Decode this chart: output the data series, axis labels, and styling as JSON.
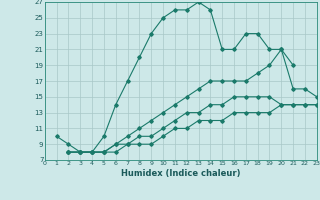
{
  "xlabel": "Humidex (Indice chaleur)",
  "bg_color": "#cde8e8",
  "grid_color": "#a8c8c8",
  "line_color": "#1a7a6a",
  "xlim": [
    0,
    23
  ],
  "ylim": [
    7,
    27
  ],
  "xticks": [
    0,
    1,
    2,
    3,
    4,
    5,
    6,
    7,
    8,
    9,
    10,
    11,
    12,
    13,
    14,
    15,
    16,
    17,
    18,
    19,
    20,
    21,
    22,
    23
  ],
  "yticks": [
    7,
    9,
    11,
    13,
    15,
    17,
    19,
    21,
    23,
    25,
    27
  ],
  "series": [
    {
      "x": [
        1,
        2,
        3,
        4,
        5,
        6,
        7,
        8,
        9,
        10,
        11,
        12,
        13,
        14,
        15,
        16,
        17,
        18,
        19,
        20,
        21
      ],
      "y": [
        10,
        9,
        8,
        8,
        10,
        14,
        17,
        20,
        23,
        25,
        26,
        26,
        27,
        26,
        21,
        21,
        23,
        23,
        21,
        21,
        19
      ]
    },
    {
      "x": [
        2,
        3,
        4,
        5,
        6,
        7,
        8,
        9,
        10,
        11,
        12,
        13,
        14,
        15,
        16,
        17,
        18,
        19,
        20,
        21,
        22,
        23
      ],
      "y": [
        8,
        8,
        8,
        8,
        9,
        10,
        11,
        12,
        13,
        14,
        15,
        16,
        17,
        17,
        17,
        17,
        18,
        19,
        21,
        16,
        16,
        15
      ]
    },
    {
      "x": [
        2,
        3,
        4,
        5,
        6,
        7,
        8,
        9,
        10,
        11,
        12,
        13,
        14,
        15,
        16,
        17,
        18,
        19,
        20,
        21,
        22,
        23
      ],
      "y": [
        8,
        8,
        8,
        8,
        9,
        9,
        10,
        10,
        11,
        12,
        13,
        13,
        14,
        14,
        15,
        15,
        15,
        15,
        14,
        14,
        14,
        14
      ]
    },
    {
      "x": [
        2,
        3,
        4,
        5,
        6,
        7,
        8,
        9,
        10,
        11,
        12,
        13,
        14,
        15,
        16,
        17,
        18,
        19,
        20,
        21,
        22,
        23
      ],
      "y": [
        8,
        8,
        8,
        8,
        8,
        9,
        9,
        9,
        10,
        11,
        11,
        12,
        12,
        12,
        13,
        13,
        13,
        13,
        14,
        14,
        14,
        14
      ]
    }
  ]
}
